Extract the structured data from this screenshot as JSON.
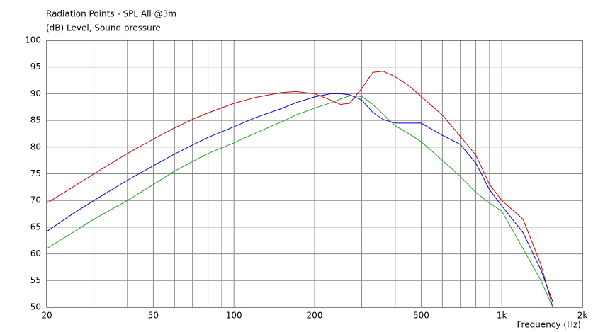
{
  "chart_data": {
    "type": "line",
    "title": "Radiation Points - SPL All @3m",
    "ylabel": "(dB)  Level, Sound pressure",
    "xlabel": "Frequency  (Hz)",
    "xscale": "log",
    "grid": true,
    "x": [
      20,
      25,
      30,
      40,
      50,
      60,
      70,
      80,
      100,
      120,
      150,
      170,
      200,
      230,
      250,
      270,
      300,
      330,
      360,
      400,
      450,
      500,
      600,
      700,
      800,
      900,
      1000,
      1200,
      1400,
      1550
    ],
    "series": [
      {
        "color": "#cc0000",
        "values": [
          69.5,
          72.5,
          75,
          78.8,
          81.5,
          83.6,
          85.2,
          86.4,
          88.2,
          89.3,
          90.2,
          90.4,
          90,
          88.8,
          88,
          88.2,
          91,
          94,
          94.2,
          93.2,
          91.5,
          89.5,
          86,
          82,
          78.5,
          73,
          70,
          66.5,
          58,
          50
        ]
      },
      {
        "color": "#0000cc",
        "values": [
          64.2,
          67.5,
          70,
          73.8,
          76.5,
          78.7,
          80.4,
          81.8,
          83.8,
          85.5,
          87.2,
          88.3,
          89.4,
          90,
          90,
          89.8,
          88.8,
          86.5,
          85.2,
          84.5,
          84.5,
          84.5,
          82.2,
          80.5,
          77,
          72,
          69,
          64,
          57,
          51
        ]
      },
      {
        "color": "#22a022",
        "values": [
          61,
          64,
          66.5,
          70,
          73,
          75.5,
          77.3,
          78.8,
          80.8,
          82.6,
          84.7,
          86,
          87.3,
          88.3,
          89,
          89.6,
          89.5,
          88,
          86.2,
          84,
          82.5,
          81,
          77.5,
          74.5,
          71.5,
          69.5,
          68,
          61,
          55,
          50
        ]
      }
    ],
    "xlim": [
      20,
      2000
    ],
    "xticks": [
      20,
      50,
      100,
      200,
      500,
      {
        "value": 1000,
        "label": "1k"
      },
      {
        "value": 2000,
        "label": "2k"
      }
    ],
    "xminor": [
      30,
      40,
      60,
      70,
      80,
      90,
      300,
      400,
      600,
      700,
      800,
      900
    ],
    "ylim": [
      50,
      100
    ],
    "yticks": [
      50,
      55,
      60,
      65,
      70,
      75,
      80,
      85,
      90,
      95,
      100
    ]
  }
}
